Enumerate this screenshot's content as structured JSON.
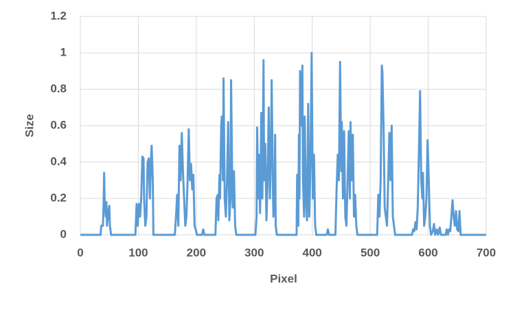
{
  "chart_data": {
    "type": "line",
    "x_label": "Pixel",
    "y_label": "Size",
    "xlim": [
      0,
      700
    ],
    "xticks": [
      0,
      100,
      200,
      300,
      400,
      500,
      600,
      700
    ],
    "ylim": [
      0,
      1.2
    ],
    "yticks": [
      0,
      0.2,
      0.4,
      0.6,
      0.8,
      1,
      1.2
    ],
    "grid": true,
    "series": [
      {
        "name": "Size",
        "color": "#5b9bd5",
        "x": [
          0,
          35,
          36,
          39,
          40,
          41,
          42,
          44,
          45,
          46,
          48,
          50,
          51,
          53,
          95,
          97,
          99,
          101,
          103,
          105,
          107,
          109,
          110,
          112,
          114,
          116,
          118,
          120,
          122,
          123,
          125,
          126,
          163,
          165,
          167,
          169,
          171,
          173,
          175,
          177,
          179,
          181,
          183,
          185,
          187,
          189,
          191,
          193,
          195,
          197,
          199,
          201,
          210,
          212,
          214,
          233,
          235,
          237,
          238,
          240,
          241,
          243,
          244,
          246,
          247,
          249,
          251,
          253,
          255,
          257,
          259,
          260,
          262,
          263,
          265,
          267,
          269,
          302,
          304,
          305,
          307,
          308,
          310,
          311,
          312,
          314,
          316,
          317,
          319,
          321,
          323,
          325,
          327,
          329,
          330,
          332,
          333,
          335,
          336,
          337,
          339,
          373,
          374,
          376,
          377,
          378,
          379,
          381,
          383,
          384,
          386,
          387,
          389,
          391,
          393,
          395,
          397,
          399,
          401,
          403,
          405,
          407,
          425,
          427,
          429,
          440,
          442,
          444,
          446,
          448,
          450,
          451,
          453,
          455,
          457,
          459,
          461,
          463,
          465,
          466,
          468,
          470,
          472,
          474,
          476,
          478,
          512,
          514,
          516,
          518,
          520,
          521,
          523,
          525,
          527,
          529,
          531,
          533,
          535,
          537,
          539,
          541,
          543,
          572,
          574,
          576,
          578,
          580,
          582,
          584,
          586,
          588,
          590,
          591,
          593,
          595,
          597,
          599,
          601,
          603,
          605,
          608,
          610,
          612,
          615,
          617,
          620,
          622,
          630,
          632,
          634,
          636,
          638,
          640,
          642,
          644,
          646,
          648,
          650,
          652,
          654,
          656,
          700
        ],
        "values": [
          0,
          0,
          0.05,
          0.05,
          0.15,
          0.34,
          0.17,
          0.1,
          0.18,
          0.05,
          0.12,
          0.16,
          0.05,
          0,
          0,
          0.17,
          0.05,
          0.17,
          0.1,
          0.2,
          0.43,
          0.42,
          0.2,
          0.05,
          0.1,
          0.4,
          0.42,
          0.2,
          0.43,
          0.49,
          0.3,
          0,
          0,
          0.1,
          0.22,
          0.05,
          0.49,
          0.3,
          0.56,
          0.35,
          0.2,
          0.05,
          0.1,
          0.3,
          0.58,
          0.3,
          0.39,
          0.25,
          0.33,
          0.05,
          0.03,
          0,
          0,
          0.03,
          0,
          0,
          0.2,
          0.22,
          0.08,
          0.33,
          0.2,
          0.6,
          0.65,
          0.3,
          0.86,
          0.2,
          0.1,
          0.3,
          0.62,
          0.08,
          0.2,
          0.85,
          0.3,
          0.15,
          0.35,
          0.05,
          0,
          0,
          0.1,
          0.59,
          0.2,
          0.44,
          0.12,
          0.3,
          0.67,
          0.2,
          0.96,
          0.3,
          0.5,
          0.08,
          0.3,
          0.7,
          0.2,
          0.5,
          0.85,
          0.3,
          0.1,
          0.2,
          0.55,
          0.05,
          0,
          0,
          0.33,
          0.05,
          0.55,
          0.2,
          0.9,
          0.6,
          0.93,
          0.3,
          0.1,
          0.65,
          0.2,
          0.08,
          0.72,
          0.1,
          0.4,
          1.0,
          0.2,
          0.44,
          0.05,
          0,
          0,
          0.03,
          0,
          0,
          0.25,
          0.44,
          0.3,
          0.95,
          0.35,
          0.62,
          0.2,
          0.57,
          0.1,
          0.05,
          0.3,
          0.57,
          0.2,
          0.62,
          0.3,
          0.55,
          0.1,
          0.22,
          0.05,
          0,
          0,
          0.22,
          0.1,
          0.3,
          0.93,
          0.9,
          0.6,
          0.15,
          0.1,
          0.05,
          0.3,
          0.56,
          0.3,
          0.6,
          0.1,
          0.05,
          0,
          0,
          0.03,
          0.02,
          0.07,
          0.03,
          0.15,
          0.45,
          0.79,
          0.3,
          0.2,
          0.34,
          0.05,
          0.1,
          0.2,
          0.52,
          0.3,
          0.05,
          0,
          0.02,
          0.06,
          0,
          0.03,
          0,
          0.04,
          0,
          0,
          0.03,
          0,
          0.03,
          0.02,
          0.1,
          0.19,
          0.1,
          0.05,
          0.13,
          0.03,
          0.02,
          0.13,
          0,
          0
        ]
      }
    ]
  }
}
